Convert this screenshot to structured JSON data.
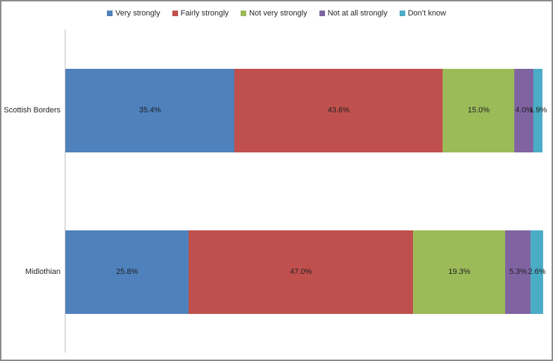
{
  "chart_data": {
    "type": "bar",
    "orientation": "horizontal",
    "stacked": true,
    "title": "",
    "xlabel": "",
    "ylabel": "",
    "xlim": [
      0,
      100
    ],
    "grid": false,
    "legend_position": "top",
    "categories": [
      "Scottish Borders",
      "Midlothian"
    ],
    "series": [
      {
        "name": "Very strongly",
        "color": "#4f81bd",
        "values": [
          35.4,
          25.8
        ],
        "labels": [
          "35.4%",
          "25.8%"
        ]
      },
      {
        "name": "Fairly strongly",
        "color": "#c0504d",
        "values": [
          43.6,
          47.0
        ],
        "labels": [
          "43.6%",
          "47.0%"
        ]
      },
      {
        "name": "Not very strongly",
        "color": "#9bbb59",
        "values": [
          15.0,
          19.3
        ],
        "labels": [
          "15.0%",
          "19.3%"
        ]
      },
      {
        "name": "Not at all strongly",
        "color": "#8064a2",
        "values": [
          4.0,
          5.3
        ],
        "labels": [
          "4.0%",
          "5.3%"
        ]
      },
      {
        "name": "Don’t know",
        "color": "#4bacc6",
        "values": [
          1.9,
          2.6
        ],
        "labels": [
          "1.9%",
          "2.6%"
        ]
      }
    ]
  },
  "colors": {
    "frame_border": "#8a8a8a",
    "axis_line": "#bfbfbf",
    "label_text": "#1f1f1f"
  }
}
